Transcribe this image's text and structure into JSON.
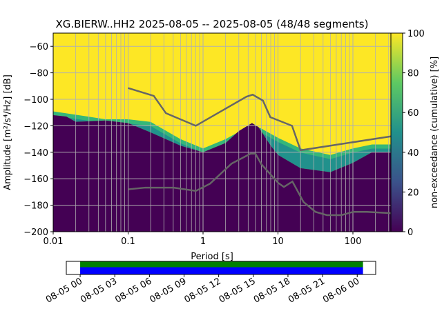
{
  "chart_data": {
    "type": "heatmap",
    "title": "XG.BIERW..HH2   2025-08-05 -- 2025-08-05  (48/48 segments)",
    "xlabel": "Period [s]",
    "ylabel": "Amplitude [m²/s⁴/Hz] [dB]",
    "xscale": "log",
    "xlim": [
      0.01,
      330
    ],
    "ylim": [
      -200,
      -50
    ],
    "xticks": [
      {
        "v": 0.01,
        "label": "0.01"
      },
      {
        "v": 0.1,
        "label": "0.1"
      },
      {
        "v": 1,
        "label": "1"
      },
      {
        "v": 10,
        "label": "10"
      },
      {
        "v": 100,
        "label": "100"
      }
    ],
    "yticks": [
      {
        "v": -60,
        "label": "−60"
      },
      {
        "v": -80,
        "label": "−80"
      },
      {
        "v": -100,
        "label": "−100"
      },
      {
        "v": -120,
        "label": "−120"
      },
      {
        "v": -140,
        "label": "−140"
      },
      {
        "v": -160,
        "label": "−160"
      },
      {
        "v": -180,
        "label": "−180"
      },
      {
        "v": -200,
        "label": "−200"
      }
    ],
    "grid": true,
    "colorbar": {
      "label": "non-exceedance (cumulative) [%]",
      "range": [
        0,
        100
      ],
      "ticks": [
        {
          "v": 0,
          "label": "0"
        },
        {
          "v": 20,
          "label": "20"
        },
        {
          "v": 40,
          "label": "40"
        },
        {
          "v": 60,
          "label": "60"
        },
        {
          "v": 80,
          "label": "80"
        },
        {
          "v": 100,
          "label": "100"
        }
      ],
      "colormap": [
        "#440154",
        "#3b528b",
        "#21918c",
        "#5ec962",
        "#fde725"
      ]
    },
    "noise_floor_0pct": [
      [
        0.01,
        -112
      ],
      [
        0.015,
        -113
      ],
      [
        0.02,
        -117
      ],
      [
        0.05,
        -116
      ],
      [
        0.1,
        -118
      ],
      [
        0.2,
        -125
      ],
      [
        0.5,
        -135
      ],
      [
        1,
        -140
      ],
      [
        2,
        -133
      ],
      [
        3,
        -124
      ],
      [
        4.5,
        -118
      ],
      [
        5.5,
        -121
      ],
      [
        8,
        -135
      ],
      [
        10,
        -142
      ],
      [
        20,
        -152
      ],
      [
        50,
        -155
      ],
      [
        100,
        -148
      ],
      [
        180,
        -140
      ],
      [
        330,
        -140
      ]
    ],
    "noise_floor_100pct": [
      [
        0.01,
        -107
      ],
      [
        0.05,
        -113
      ],
      [
        0.1,
        -113
      ],
      [
        0.2,
        -115
      ],
      [
        0.5,
        -128
      ],
      [
        1,
        -135
      ],
      [
        2,
        -128
      ],
      [
        4.5,
        -117
      ],
      [
        6,
        -120
      ],
      [
        10,
        -127
      ],
      [
        20,
        -135
      ],
      [
        50,
        -140
      ],
      [
        100,
        -135
      ],
      [
        180,
        -132
      ],
      [
        330,
        -132
      ]
    ],
    "high_noise_model": [
      [
        0.1,
        -91.5
      ],
      [
        0.22,
        -97.4
      ],
      [
        0.32,
        -110.5
      ],
      [
        0.8,
        -120
      ],
      [
        3.8,
        -98
      ],
      [
        4.6,
        -96.5
      ],
      [
        6.3,
        -101
      ],
      [
        7.9,
        -113.5
      ],
      [
        15.4,
        -120
      ],
      [
        20,
        -138.5
      ],
      [
        330,
        -128
      ]
    ],
    "low_noise_model": [
      [
        0.1,
        -168
      ],
      [
        0.17,
        -166.7
      ],
      [
        0.4,
        -166.7
      ],
      [
        0.8,
        -169.2
      ],
      [
        1.24,
        -163.7
      ],
      [
        2.4,
        -148.6
      ],
      [
        4.3,
        -141.1
      ],
      [
        5,
        -141.1
      ],
      [
        6,
        -149
      ],
      [
        10,
        -163
      ],
      [
        12,
        -166.2
      ],
      [
        15.6,
        -162.1
      ],
      [
        21.9,
        -177.5
      ],
      [
        31.6,
        -185
      ],
      [
        45,
        -187.5
      ],
      [
        70,
        -187.5
      ],
      [
        101,
        -185
      ],
      [
        154,
        -185
      ],
      [
        330,
        -186
      ]
    ],
    "coverage": {
      "ticks": [
        "08-05 00",
        "08-05 03",
        "08-05 06",
        "08-05 09",
        "08-05 12",
        "08-05 15",
        "08-05 18",
        "08-05 21",
        "08-06 00"
      ],
      "range_hours": [
        -1.2,
        25.6
      ],
      "data_hours": [
        0,
        24.5
      ],
      "colors": {
        "top": "#008000",
        "bottom": "#0000ff"
      }
    }
  }
}
